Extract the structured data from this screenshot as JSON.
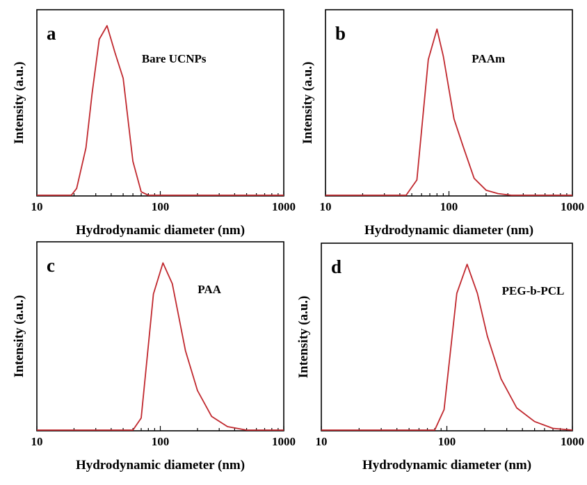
{
  "colors": {
    "line": "#c0272d",
    "axes": "#000000",
    "background": "#ffffff"
  },
  "chart_data": [
    {
      "type": "line",
      "panel_letter": "a",
      "xscale": "log",
      "xlim": [
        10,
        1000
      ],
      "xticks": [
        "10",
        "100",
        "1000"
      ],
      "xlabel": "Hydrodynamic diameter (nm)",
      "ylabel": "Intensity (a.u.)",
      "series": [
        {
          "name": "Bare UCNPs",
          "x": [
            10,
            19,
            21,
            25,
            28,
            32,
            37,
            43,
            50,
            60,
            70,
            80,
            100,
            1000
          ],
          "y": [
            0,
            0,
            4,
            28,
            60,
            92,
            100,
            84,
            69,
            20,
            2,
            0,
            0,
            0
          ]
        }
      ]
    },
    {
      "type": "line",
      "panel_letter": "b",
      "xscale": "log",
      "xlim": [
        10,
        1000
      ],
      "xticks": [
        "10",
        "100",
        "1000"
      ],
      "xlabel": "Hydrodynamic diameter (nm)",
      "ylabel": "Intensity (a.u.)",
      "series": [
        {
          "name": "PAAm",
          "x": [
            10,
            45,
            55,
            68,
            80,
            90,
            110,
            130,
            160,
            200,
            250,
            320,
            1000
          ],
          "y": [
            0,
            0,
            9,
            80,
            98,
            82,
            45,
            29,
            10,
            3,
            1,
            0,
            0
          ]
        }
      ]
    },
    {
      "type": "line",
      "panel_letter": "c",
      "xscale": "log",
      "xlim": [
        10,
        1000
      ],
      "xticks": [
        "10",
        "100",
        "1000"
      ],
      "xlabel": "Hydrodynamic diameter (nm)",
      "ylabel": "Intensity (a.u.)",
      "series": [
        {
          "name": "PAA",
          "x": [
            10,
            60,
            70,
            88,
            105,
            125,
            160,
            200,
            260,
            350,
            500,
            1000
          ],
          "y": [
            0,
            0,
            7,
            79,
            97,
            85,
            46,
            23,
            8,
            2,
            0,
            0
          ]
        }
      ]
    },
    {
      "type": "line",
      "panel_letter": "d",
      "xscale": "log",
      "xlim": [
        10,
        1000
      ],
      "xticks": [
        "10",
        "100",
        "1000"
      ],
      "xlabel": "Hydrodynamic diameter (nm)",
      "ylabel": "Intensity (a.u.)",
      "series": [
        {
          "name": "PEG-b-PCL",
          "x": [
            10,
            80,
            95,
            120,
            145,
            175,
            210,
            270,
            360,
            500,
            700,
            1000
          ],
          "y": [
            0,
            0,
            12,
            80,
            97,
            80,
            55,
            30,
            13,
            5,
            1,
            0
          ]
        }
      ]
    }
  ]
}
